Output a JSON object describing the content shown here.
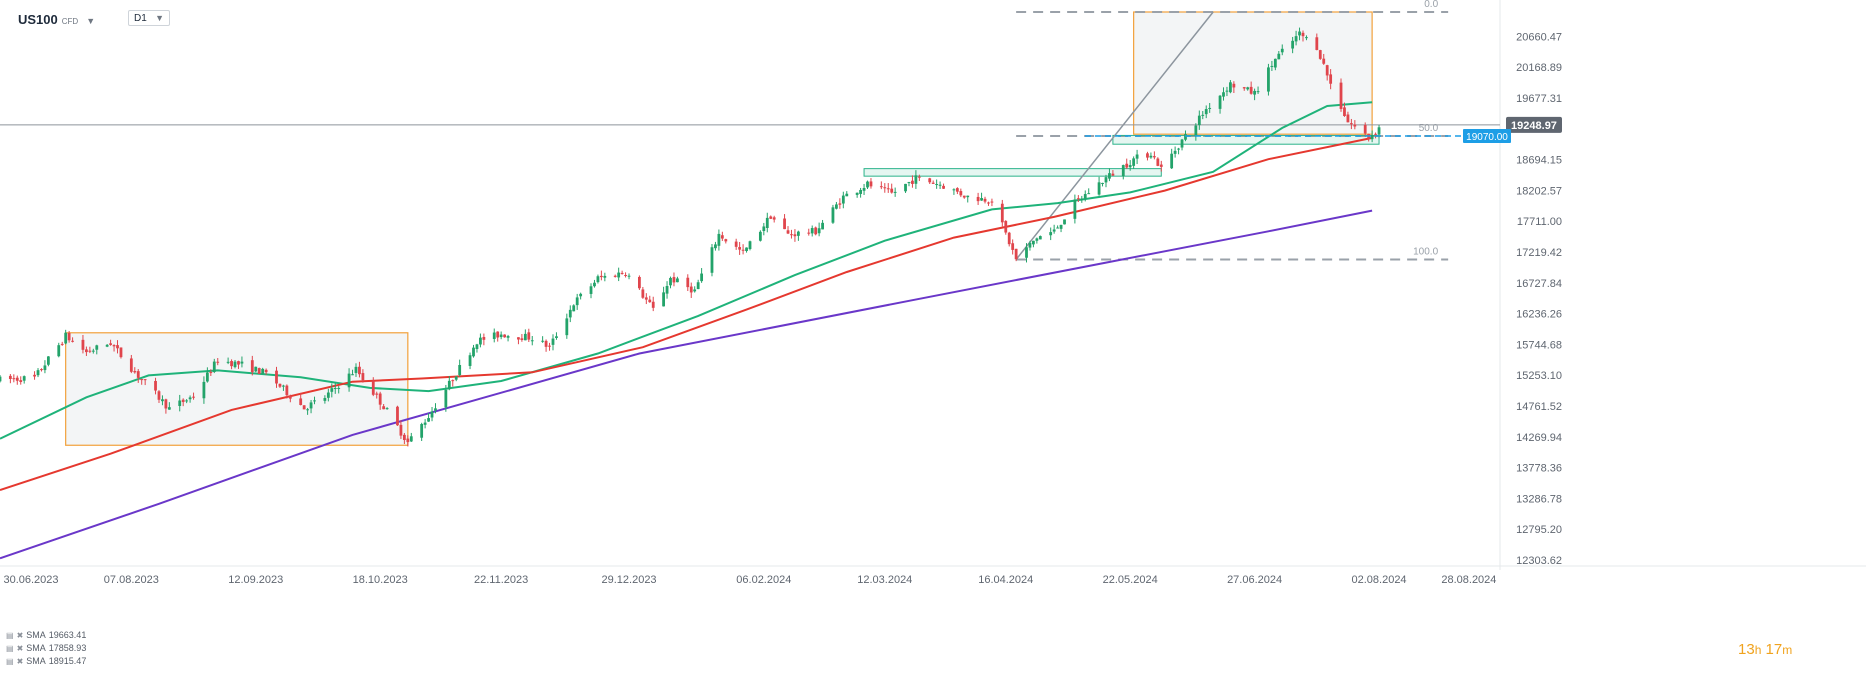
{
  "header": {
    "symbol": "US100",
    "symbol_type": "CFD",
    "timeframe": "D1"
  },
  "timer": {
    "hours": "13",
    "hours_unit": "h",
    "minutes": "17",
    "minutes_unit": "m"
  },
  "legend": [
    {
      "label": "SMA",
      "value": "19663.41"
    },
    {
      "label": "SMA",
      "value": "17858.93"
    },
    {
      "label": "SMA",
      "value": "18915.47"
    }
  ],
  "chart_data": {
    "type": "candlestick",
    "symbol": "US100",
    "timeframe": "D1",
    "x_axis": {
      "tick_labels": [
        "30.06.2023",
        "07.08.2023",
        "12.09.2023",
        "18.10.2023",
        "22.11.2023",
        "29.12.2023",
        "06.02.2024",
        "12.03.2024",
        "16.04.2024",
        "22.05.2024",
        "27.06.2024",
        "02.08.2024",
        "28.08.2024"
      ],
      "range": [
        "2023-06-30",
        "2024-09-06"
      ]
    },
    "y_axis": {
      "tick_labels": [
        "20660.47",
        "20168.89",
        "19677.31",
        "18694.15",
        "18202.57",
        "17711.00",
        "17219.42",
        "16727.84",
        "16236.26",
        "15744.68",
        "15253.10",
        "14761.52",
        "14269.94",
        "13778.36",
        "13286.78",
        "12795.20",
        "12303.62"
      ],
      "range": [
        12303.62,
        21050
      ]
    },
    "current_price": "19248.97",
    "horizontal_level": "19070.00",
    "colors": {
      "bull_candle": "#23a36a",
      "bear_candle": "#e0454c",
      "sma_green": "#1fb37a",
      "sma_red": "#e5382f",
      "sma_purple": "#6a37c9",
      "rectangle": "#f2a13b",
      "zone": "#2bb38a",
      "level_line": "#1d9ee6",
      "price_label": "#5f6670"
    },
    "ohlc_path": [
      [
        "2023-06-30",
        15180
      ],
      [
        "2023-07-10",
        15210
      ],
      [
        "2023-07-19",
        15880
      ],
      [
        "2023-07-25",
        15620
      ],
      [
        "2023-08-01",
        15770
      ],
      [
        "2023-08-08",
        15300
      ],
      [
        "2023-08-18",
        14720
      ],
      [
        "2023-08-25",
        14920
      ],
      [
        "2023-09-01",
        15500
      ],
      [
        "2023-09-08",
        15420
      ],
      [
        "2023-09-15",
        15280
      ],
      [
        "2023-09-26",
        14730
      ],
      [
        "2023-10-02",
        14900
      ],
      [
        "2023-10-11",
        15350
      ],
      [
        "2023-10-20",
        14680
      ],
      [
        "2023-10-26",
        14180
      ],
      [
        "2023-11-01",
        14600
      ],
      [
        "2023-11-08",
        15200
      ],
      [
        "2023-11-15",
        15800
      ],
      [
        "2023-11-22",
        15910
      ],
      [
        "2023-12-01",
        15850
      ],
      [
        "2023-12-06",
        15700
      ],
      [
        "2023-12-13",
        16400
      ],
      [
        "2023-12-20",
        16800
      ],
      [
        "2023-12-28",
        16900
      ],
      [
        "2024-01-05",
        16300
      ],
      [
        "2024-01-10",
        16800
      ],
      [
        "2024-01-17",
        16600
      ],
      [
        "2024-01-24",
        17500
      ],
      [
        "2024-01-31",
        17200
      ],
      [
        "2024-02-08",
        17800
      ],
      [
        "2024-02-13",
        17500
      ],
      [
        "2024-02-21",
        17550
      ],
      [
        "2024-02-29",
        18100
      ],
      [
        "2024-03-07",
        18300
      ],
      [
        "2024-03-14",
        18150
      ],
      [
        "2024-03-21",
        18400
      ],
      [
        "2024-03-28",
        18300
      ],
      [
        "2024-04-05",
        18100
      ],
      [
        "2024-04-12",
        18050
      ],
      [
        "2024-04-19",
        17100
      ],
      [
        "2024-04-25",
        17450
      ],
      [
        "2024-04-30",
        17550
      ],
      [
        "2024-05-06",
        18000
      ],
      [
        "2024-05-15",
        18400
      ],
      [
        "2024-05-23",
        18700
      ],
      [
        "2024-05-28",
        18800
      ],
      [
        "2024-05-31",
        18550
      ],
      [
        "2024-06-06",
        19000
      ],
      [
        "2024-06-13",
        19500
      ],
      [
        "2024-06-20",
        19900
      ],
      [
        "2024-06-27",
        19750
      ],
      [
        "2024-07-03",
        20300
      ],
      [
        "2024-07-10",
        20700
      ],
      [
        "2024-07-15",
        20500
      ],
      [
        "2024-07-19",
        19900
      ],
      [
        "2024-07-24",
        19300
      ],
      [
        "2024-07-30",
        19050
      ],
      [
        "2024-08-02",
        19200
      ]
    ],
    "series": [
      {
        "kind": "sma",
        "color": "green",
        "points": [
          [
            "2023-06-30",
            14240
          ],
          [
            "2023-07-25",
            14900
          ],
          [
            "2023-08-12",
            15250
          ],
          [
            "2023-09-01",
            15330
          ],
          [
            "2023-09-25",
            15220
          ],
          [
            "2023-10-15",
            15050
          ],
          [
            "2023-11-01",
            15000
          ],
          [
            "2023-11-22",
            15160
          ],
          [
            "2023-12-20",
            15600
          ],
          [
            "2024-01-18",
            16200
          ],
          [
            "2024-02-15",
            16850
          ],
          [
            "2024-03-12",
            17400
          ],
          [
            "2024-04-12",
            17900
          ],
          [
            "2024-05-01",
            18000
          ],
          [
            "2024-05-22",
            18170
          ],
          [
            "2024-06-15",
            18500
          ],
          [
            "2024-07-05",
            19200
          ],
          [
            "2024-07-18",
            19550
          ],
          [
            "2024-07-31",
            19610
          ]
        ]
      },
      {
        "kind": "sma",
        "color": "red",
        "points": [
          [
            "2023-06-30",
            13420
          ],
          [
            "2023-08-01",
            14000
          ],
          [
            "2023-09-05",
            14700
          ],
          [
            "2023-10-10",
            15150
          ],
          [
            "2023-10-30",
            15200
          ],
          [
            "2023-12-01",
            15300
          ],
          [
            "2024-01-02",
            15700
          ],
          [
            "2024-02-01",
            16300
          ],
          [
            "2024-03-01",
            16900
          ],
          [
            "2024-04-01",
            17450
          ],
          [
            "2024-04-30",
            17780
          ],
          [
            "2024-06-01",
            18200
          ],
          [
            "2024-07-01",
            18700
          ],
          [
            "2024-07-31",
            19040
          ]
        ]
      },
      {
        "kind": "sma",
        "color": "purple",
        "points": [
          [
            "2023-06-30",
            12330
          ],
          [
            "2023-08-15",
            13200
          ],
          [
            "2023-10-10",
            14300
          ],
          [
            "2024-01-01",
            15600
          ],
          [
            "2024-03-20",
            16450
          ],
          [
            "2024-05-15",
            17050
          ],
          [
            "2024-07-01",
            17550
          ],
          [
            "2024-07-31",
            17880
          ]
        ]
      }
    ],
    "fibonacci": {
      "levels": [
        {
          "label": "0.0",
          "value": 21050
        },
        {
          "label": "50.0",
          "value": 19070
        },
        {
          "label": "100.0",
          "value": 17100
        }
      ],
      "from": "2024-04-19",
      "to": "2024-08-22"
    },
    "rectangles": [
      {
        "from": "2023-07-19",
        "to": "2023-10-26",
        "top": 15930,
        "bottom": 14135
      },
      {
        "from": "2024-05-23",
        "to": "2024-07-31",
        "top": 21050,
        "bottom": 19100
      }
    ],
    "zones": [
      {
        "from": "2024-03-06",
        "to": "2024-05-31",
        "top": 18550,
        "bottom": 18430
      },
      {
        "from": "2024-05-17",
        "to": "2024-08-02",
        "top": 19080,
        "bottom": 18940
      }
    ],
    "trend_line": {
      "from": [
        "2024-04-19",
        17100
      ],
      "to": [
        "2024-06-15",
        21050
      ]
    }
  }
}
